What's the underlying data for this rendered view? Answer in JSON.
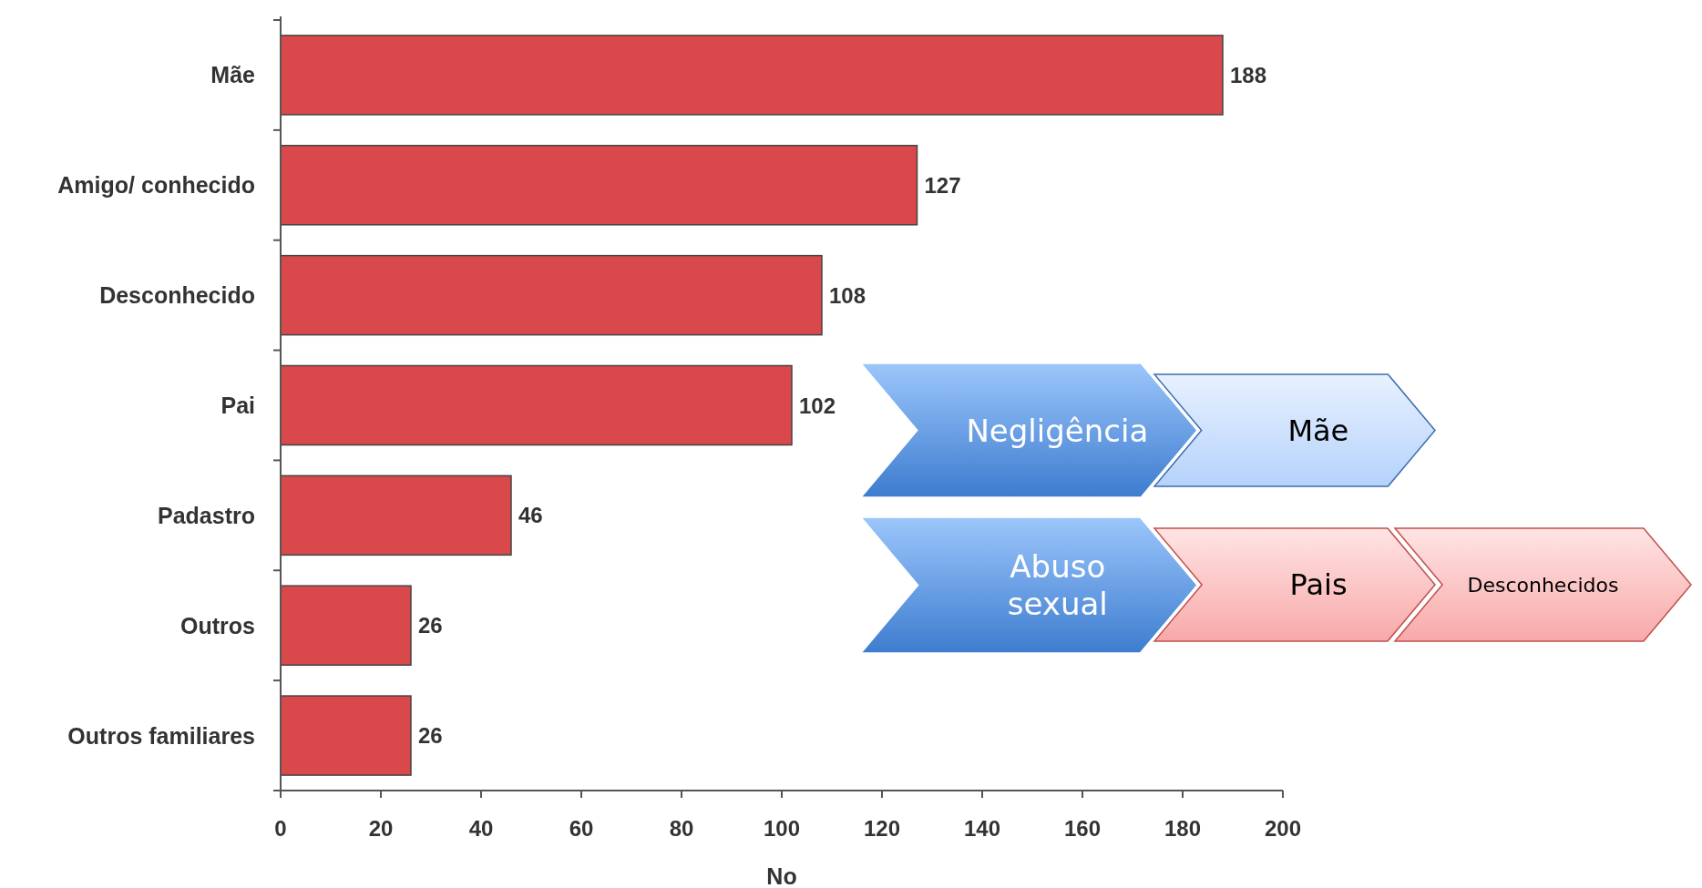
{
  "chart_data": {
    "type": "bar",
    "orientation": "horizontal",
    "xlabel": "No",
    "categories": [
      "Mãe",
      "Amigo/ conhecido",
      "Desconhecido",
      "Pai",
      "Padastro",
      "Outros",
      "Outros familiares"
    ],
    "values": [
      188,
      127,
      108,
      102,
      46,
      26,
      26
    ],
    "color": "#d9494b",
    "data_labels": true,
    "xlim": [
      0,
      200
    ],
    "xticks": [
      0,
      20,
      40,
      60,
      80,
      100,
      120,
      140,
      160,
      180,
      200
    ],
    "grid": false,
    "annotations": [
      "Negligência",
      "Mãe",
      "Abuso sexual",
      "Pais",
      "Desconhecidos"
    ]
  }
}
